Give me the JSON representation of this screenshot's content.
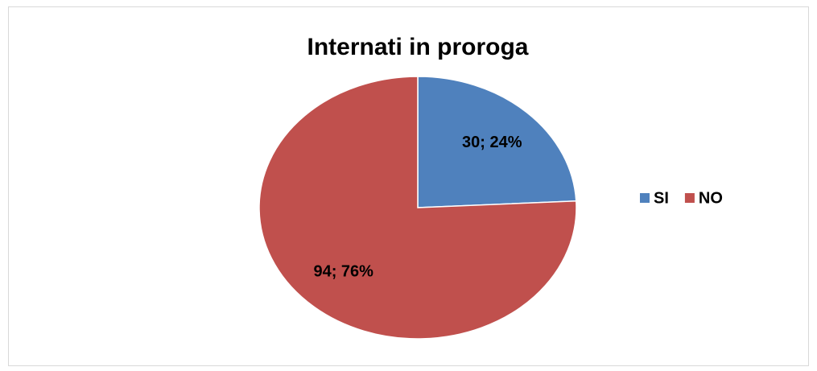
{
  "chart_data": {
    "type": "pie",
    "title": "Internati in proroga",
    "categories": [
      "SI",
      "NO"
    ],
    "values": [
      30,
      94
    ],
    "value_labels": [
      "30; 24%",
      "94; 76%"
    ],
    "colors": [
      "#4f81bd",
      "#c0504d"
    ],
    "legend": "right"
  }
}
